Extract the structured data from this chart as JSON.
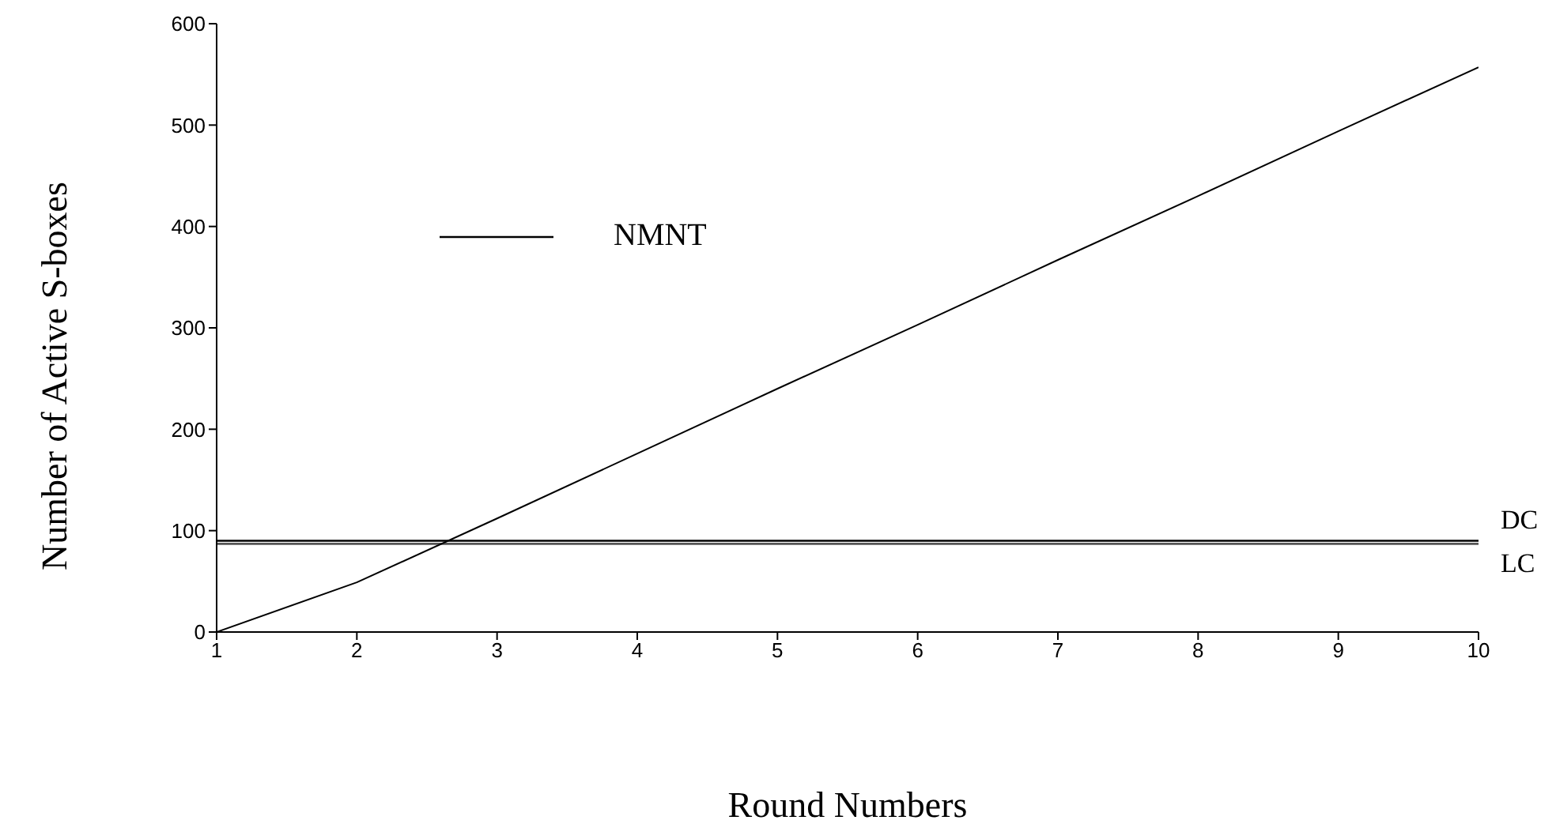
{
  "chart_data": {
    "type": "line",
    "xlabel": "Round Numbers",
    "ylabel": "Number of Active S-boxes",
    "x": [
      1,
      2,
      3,
      4,
      5,
      6,
      7,
      8,
      9,
      10
    ],
    "series": [
      {
        "name": "NMNT",
        "color": "#000000",
        "values": [
          0,
          49,
          112,
          176,
          240,
          303,
          367,
          430,
          494,
          557
        ]
      }
    ],
    "ref_lines": [
      {
        "axis": "y",
        "value": 90,
        "label": "DC",
        "color": "#000000"
      },
      {
        "axis": "y",
        "value": 87,
        "label": "LC",
        "color": "#555555"
      }
    ],
    "xlim": [
      1,
      10
    ],
    "xticks": [
      1,
      2,
      3,
      4,
      5,
      6,
      7,
      8,
      9,
      10
    ],
    "ylim": [
      0,
      600
    ],
    "yticks": [
      0,
      100,
      200,
      300,
      400,
      500,
      600
    ],
    "grid": false,
    "legend": "top left",
    "marker": "none",
    "line_style": "solid"
  }
}
